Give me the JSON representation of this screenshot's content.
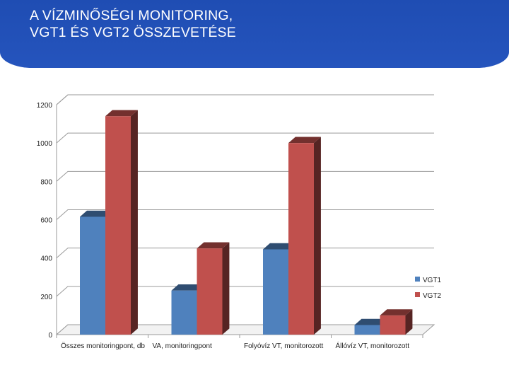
{
  "slide": {
    "title_line1": "A VÍZMINŐSÉGI MONITORING,",
    "title_line2": "VGT1 ÉS VGT2 ÖSSZEVETÉSE"
  },
  "chart_data": {
    "type": "bar",
    "title": "",
    "xlabel": "",
    "ylabel": "",
    "categories": [
      "Összes monitoringpont, db",
      "VA, monitoringpont",
      "Folyóvíz VT, monitorozott",
      "Állóvíz VT, monitorozott"
    ],
    "series": [
      {
        "name": "VGT1",
        "values": [
          615,
          230,
          445,
          50
        ],
        "color": "#4f81bd"
      },
      {
        "name": "VGT2",
        "values": [
          1140,
          450,
          1000,
          100
        ],
        "color": "#c0504d"
      }
    ],
    "ylim": [
      0,
      1200
    ],
    "yticks": [
      0,
      200,
      400,
      600,
      800,
      1000,
      1200
    ],
    "grid": true,
    "legend": "right",
    "style": "3d-column"
  }
}
